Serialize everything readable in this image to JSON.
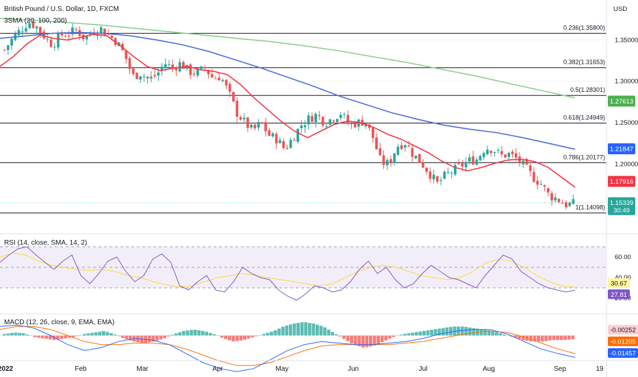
{
  "header": {
    "title": "British Pound / U.S. Dollar, 1D, FXCM",
    "indicator": "3SMA (20, 100, 200)",
    "currency": "USD"
  },
  "chart_data": [
    {
      "type": "candlestick",
      "title": "British Pound / U.S. Dollar, 1D, FXCM",
      "ylim": [
        1.125,
        1.39
      ],
      "yticks": [
        "1.35000",
        "1.30000",
        "1.25000",
        "1.20000"
      ],
      "x_month_labels": [
        "2022",
        "Feb",
        "Mar",
        "Apr",
        "May",
        "Jun",
        "Jul",
        "Aug",
        "Sep",
        "19"
      ],
      "fib_levels": [
        {
          "label": "0.236(1.35800)",
          "value": 1.358
        },
        {
          "label": "0.382(1.31653)",
          "value": 1.31653
        },
        {
          "label": "0.5(1.28301)",
          "value": 1.28301
        },
        {
          "label": "0.618(1.24949)",
          "value": 1.24949
        },
        {
          "label": "0.786(1.20177)",
          "value": 1.20177
        },
        {
          "label": "1(1.14098)",
          "value": 1.14098
        }
      ],
      "price_badges": [
        {
          "label": "1.27613",
          "value": 1.27613,
          "color": "#4caf50"
        },
        {
          "label": "1.21847",
          "value": 1.21847,
          "color": "#2962ff"
        },
        {
          "label": "1.17916",
          "value": 1.17916,
          "color": "#f23645"
        },
        {
          "label": "1.15339",
          "value": 1.15339,
          "color": "#26a69a",
          "sub": "30:49"
        }
      ],
      "sma_colors": {
        "sma20": "#f23645",
        "sma100": "#4c6ed6",
        "sma200": "#8ccf90"
      },
      "candle_colors": {
        "up": "#26a69a",
        "down": "#ef5350"
      },
      "close_path": [
        1.338,
        1.352,
        1.362,
        1.372,
        1.366,
        1.354,
        1.344,
        1.356,
        1.358,
        1.362,
        1.352,
        1.36,
        1.364,
        1.356,
        1.348,
        1.332,
        1.306,
        1.31,
        1.302,
        1.308,
        1.322,
        1.316,
        1.322,
        1.312,
        1.31,
        1.316,
        1.304,
        1.306,
        1.286,
        1.262,
        1.25,
        1.24,
        1.25,
        1.235,
        1.23,
        1.218,
        1.232,
        1.247,
        1.255,
        1.26,
        1.25,
        1.256,
        1.262,
        1.247,
        1.25,
        1.252,
        1.232,
        1.202,
        1.2,
        1.222,
        1.226,
        1.212,
        1.202,
        1.19,
        1.176,
        1.186,
        1.192,
        1.198,
        1.204,
        1.206,
        1.22,
        1.218,
        1.21,
        1.212,
        1.206,
        1.196,
        1.184,
        1.176,
        1.162,
        1.158,
        1.151,
        1.152
      ],
      "sma20_path": [
        1.318,
        1.33,
        1.345,
        1.356,
        1.352,
        1.35,
        1.353,
        1.357,
        1.355,
        1.343,
        1.33,
        1.318,
        1.313,
        1.316,
        1.318,
        1.314,
        1.312,
        1.308,
        1.296,
        1.28,
        1.266,
        1.252,
        1.24,
        1.232,
        1.24,
        1.248,
        1.252,
        1.25,
        1.244,
        1.236,
        1.23,
        1.222,
        1.214,
        1.204,
        1.196,
        1.192,
        1.196,
        1.201,
        1.205,
        1.206,
        1.203,
        1.196,
        1.184,
        1.172
      ],
      "sma100_path": [
        1.352,
        1.355,
        1.358,
        1.359,
        1.358,
        1.355,
        1.35,
        1.344,
        1.336,
        1.326,
        1.316,
        1.305,
        1.294,
        1.282,
        1.272,
        1.262,
        1.254,
        1.247,
        1.242,
        1.238,
        1.232,
        1.225,
        1.218
      ],
      "sma200_path": [
        1.376,
        1.374,
        1.371,
        1.368,
        1.364,
        1.36,
        1.356,
        1.352,
        1.348,
        1.343,
        1.337,
        1.33,
        1.323,
        1.315,
        1.307,
        1.298,
        1.289,
        1.28
      ]
    },
    {
      "type": "line",
      "title": "RSI (14, close, SMA, 14, 2)",
      "yticks": [
        "60.00",
        "40.00",
        "20.00"
      ],
      "band": [
        30,
        70
      ],
      "badges": [
        {
          "label": "30.67",
          "value": 30.67,
          "color": "#fff59d"
        },
        {
          "label": "27.81",
          "value": 27.81,
          "color": "#7e57c2"
        }
      ],
      "rsi_path": [
        55,
        62,
        68,
        70,
        62,
        55,
        48,
        56,
        62,
        42,
        34,
        44,
        56,
        60,
        46,
        36,
        42,
        58,
        63,
        55,
        32,
        28,
        36,
        42,
        28,
        26,
        36,
        50,
        44,
        40,
        38,
        28,
        22,
        18,
        24,
        32,
        30,
        26,
        28,
        36,
        48,
        56,
        44,
        50,
        38,
        30,
        34,
        44,
        52,
        46,
        40,
        38,
        34,
        30,
        42,
        52,
        62,
        58,
        46,
        40,
        34,
        30,
        28,
        26,
        27.81
      ],
      "rsi_ma_path": [
        60,
        64,
        62,
        56,
        52,
        50,
        48,
        47,
        48,
        46,
        42,
        40,
        36,
        33,
        31,
        32,
        36,
        40,
        42,
        44,
        42,
        40,
        38,
        36,
        34,
        32,
        34,
        40,
        46,
        50,
        52,
        50,
        46,
        42,
        40,
        38,
        40,
        46,
        54,
        58,
        56,
        50,
        42,
        36,
        32,
        30.67
      ],
      "colors": {
        "rsi": "#7e57c2",
        "ma": "#fdd835"
      }
    },
    {
      "type": "bar",
      "title": "MACD (12, 26, close, 9, EMA, EMA)",
      "badges": [
        {
          "label": "-0.00252",
          "value": -0.00252,
          "color": "#ffcdd2"
        },
        {
          "label": "-0.01205",
          "value": -0.01205,
          "color": "#ff6d00"
        },
        {
          "label": "-0.01457",
          "value": -0.01457,
          "color": "#2962ff"
        }
      ],
      "hist_path": [
        0.001,
        0.002,
        0.0015,
        -0.001,
        -0.002,
        -0.003,
        -0.002,
        -0.001,
        0.001,
        0.002,
        0.003,
        0.001,
        -0.002,
        -0.004,
        -0.005,
        -0.004,
        -0.002,
        0.001,
        0.003,
        0.004,
        0.003,
        0.001,
        -0.002,
        -0.004,
        -0.003,
        -0.001,
        0.001,
        0.003,
        0.006,
        0.008,
        0.009,
        0.008,
        0.006,
        0.002,
        -0.002,
        -0.006,
        -0.008,
        -0.007,
        -0.004,
        -0.001,
        0.001,
        0.002,
        0.003,
        0.004,
        0.005,
        0.006,
        0.006,
        0.005,
        0.004,
        0.003,
        0.001,
        -0.001,
        -0.003,
        -0.004,
        -0.004,
        -0.003,
        -0.003,
        -0.00252
      ],
      "macd_path": [
        0.006,
        0.007,
        0.005,
        0.0,
        -0.006,
        -0.01,
        -0.008,
        -0.004,
        -0.002,
        -0.003,
        -0.006,
        -0.012,
        -0.018,
        -0.022,
        -0.024,
        -0.022,
        -0.016,
        -0.01,
        -0.006,
        -0.004,
        -0.005,
        -0.006,
        -0.006,
        -0.005,
        -0.004,
        -0.002,
        0.001,
        0.003,
        0.004,
        0.004,
        0.001,
        -0.004,
        -0.009,
        -0.012,
        -0.01457
      ],
      "signal_path": [
        0.004,
        0.006,
        0.006,
        0.004,
        0.0,
        -0.004,
        -0.006,
        -0.006,
        -0.005,
        -0.005,
        -0.006,
        -0.009,
        -0.013,
        -0.017,
        -0.02,
        -0.02,
        -0.018,
        -0.014,
        -0.01,
        -0.007,
        -0.006,
        -0.006,
        -0.006,
        -0.006,
        -0.005,
        -0.004,
        -0.002,
        0.0,
        0.002,
        0.003,
        0.002,
        -0.001,
        -0.005,
        -0.009,
        -0.01205
      ],
      "colors": {
        "macd": "#2962ff",
        "signal": "#ff6d00",
        "hist_up": "#26a69a",
        "hist_down": "#ef5350"
      }
    }
  ]
}
